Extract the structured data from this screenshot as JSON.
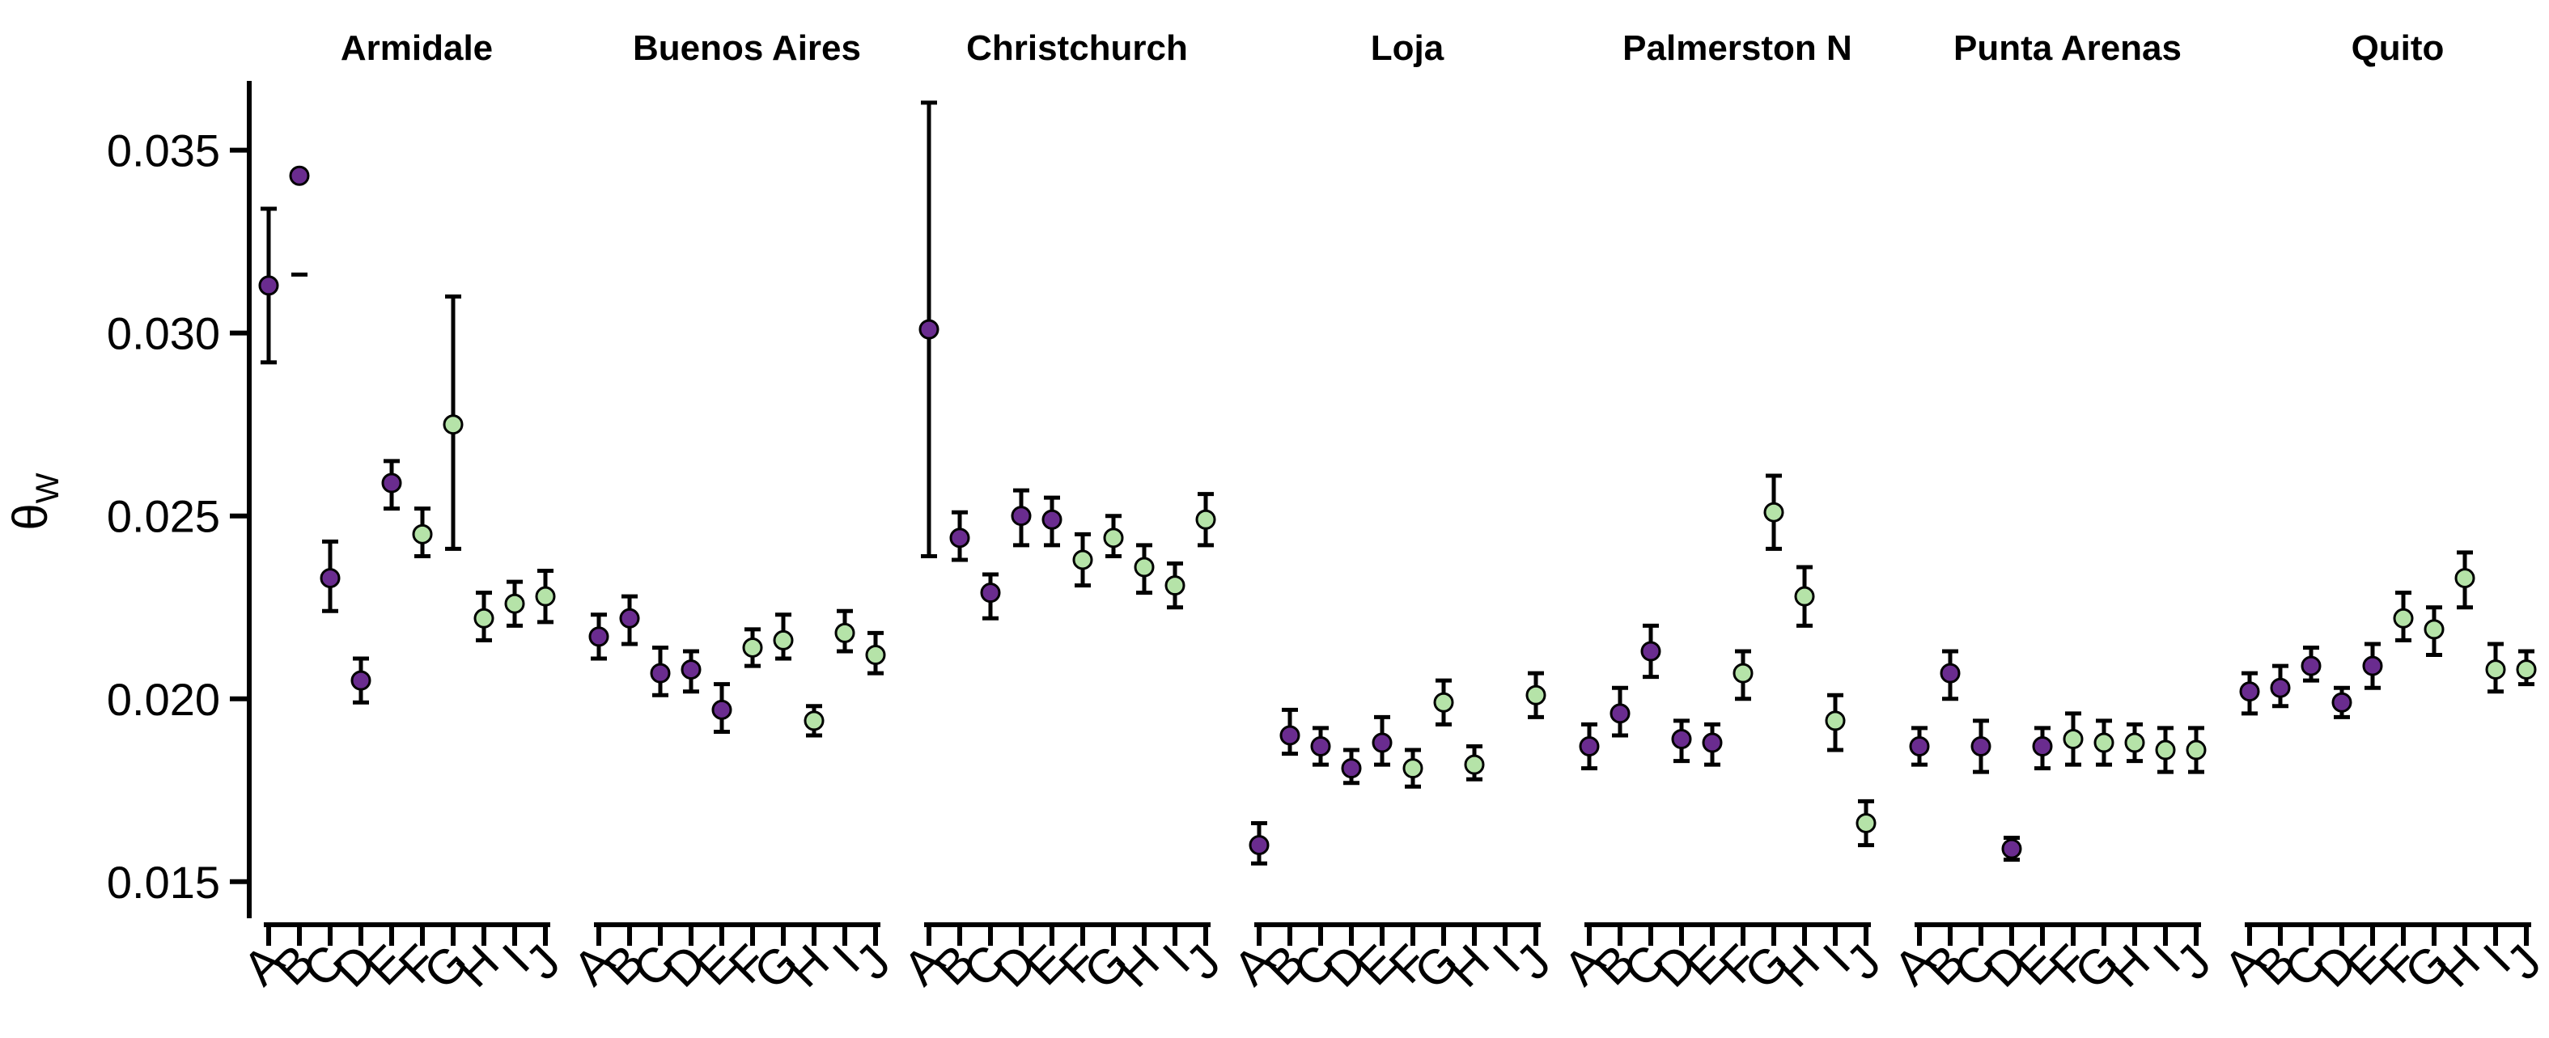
{
  "chart_data": {
    "type": "scatter",
    "subtype": "point-with-error-bars, faceted",
    "ylabel": "θW",
    "ylim": [
      0.014,
      0.038
    ],
    "yticks": [
      "0.015",
      "0.020",
      "0.025",
      "0.030",
      "0.035"
    ],
    "ytick_values": [
      0.015,
      0.02,
      0.025,
      0.03,
      0.035
    ],
    "categories": [
      "A",
      "B",
      "C",
      "D",
      "E",
      "F",
      "G",
      "H",
      "I",
      "J"
    ],
    "grid": false,
    "legend": "none",
    "colors": {
      "purple": "#6a2c8f",
      "green": "#b5e3a8",
      "outline": "#000000"
    },
    "panels": [
      {
        "title": "Armidale",
        "points": [
          {
            "x": "A",
            "y": 0.0313,
            "lo": 0.0292,
            "hi": 0.0334,
            "color": "purple"
          },
          {
            "x": "B",
            "y": 0.0343,
            "lo": 0.0316,
            "hi": 0.0316,
            "color": "purple"
          },
          {
            "x": "C",
            "y": 0.0233,
            "lo": 0.0224,
            "hi": 0.0243,
            "color": "purple"
          },
          {
            "x": "D",
            "y": 0.0205,
            "lo": 0.0199,
            "hi": 0.0211,
            "color": "purple"
          },
          {
            "x": "E",
            "y": 0.0259,
            "lo": 0.0252,
            "hi": 0.0265,
            "color": "purple"
          },
          {
            "x": "F",
            "y": 0.0245,
            "lo": 0.0239,
            "hi": 0.0252,
            "color": "green"
          },
          {
            "x": "G",
            "y": 0.0275,
            "lo": 0.0241,
            "hi": 0.031,
            "color": "green"
          },
          {
            "x": "H",
            "y": 0.0222,
            "lo": 0.0216,
            "hi": 0.0229,
            "color": "green"
          },
          {
            "x": "I",
            "y": 0.0226,
            "lo": 0.022,
            "hi": 0.0232,
            "color": "green"
          },
          {
            "x": "J",
            "y": 0.0228,
            "lo": 0.0221,
            "hi": 0.0235,
            "color": "green"
          }
        ]
      },
      {
        "title": "Buenos Aires",
        "points": [
          {
            "x": "A",
            "y": 0.0217,
            "lo": 0.0211,
            "hi": 0.0223,
            "color": "purple"
          },
          {
            "x": "B",
            "y": 0.0222,
            "lo": 0.0215,
            "hi": 0.0228,
            "color": "purple"
          },
          {
            "x": "C",
            "y": 0.0207,
            "lo": 0.0201,
            "hi": 0.0214,
            "color": "purple"
          },
          {
            "x": "D",
            "y": 0.0208,
            "lo": 0.0202,
            "hi": 0.0213,
            "color": "purple"
          },
          {
            "x": "E",
            "y": 0.0197,
            "lo": 0.0191,
            "hi": 0.0204,
            "color": "purple"
          },
          {
            "x": "F",
            "y": 0.0214,
            "lo": 0.0209,
            "hi": 0.0219,
            "color": "green"
          },
          {
            "x": "G",
            "y": 0.0216,
            "lo": 0.0211,
            "hi": 0.0223,
            "color": "green"
          },
          {
            "x": "H",
            "y": 0.0194,
            "lo": 0.019,
            "hi": 0.0198,
            "color": "green"
          },
          {
            "x": "I",
            "y": 0.0218,
            "lo": 0.0213,
            "hi": 0.0224,
            "color": "green"
          },
          {
            "x": "J",
            "y": 0.0212,
            "lo": 0.0207,
            "hi": 0.0218,
            "color": "green"
          }
        ]
      },
      {
        "title": "Christchurch",
        "points": [
          {
            "x": "A",
            "y": 0.0301,
            "lo": 0.0239,
            "hi": 0.0363,
            "color": "purple"
          },
          {
            "x": "B",
            "y": 0.0244,
            "lo": 0.0238,
            "hi": 0.0251,
            "color": "purple"
          },
          {
            "x": "C",
            "y": 0.0229,
            "lo": 0.0222,
            "hi": 0.0234,
            "color": "purple"
          },
          {
            "x": "D",
            "y": 0.025,
            "lo": 0.0242,
            "hi": 0.0257,
            "color": "purple"
          },
          {
            "x": "E",
            "y": 0.0249,
            "lo": 0.0242,
            "hi": 0.0255,
            "color": "purple"
          },
          {
            "x": "F",
            "y": 0.0238,
            "lo": 0.0231,
            "hi": 0.0245,
            "color": "green"
          },
          {
            "x": "G",
            "y": 0.0244,
            "lo": 0.0239,
            "hi": 0.025,
            "color": "green"
          },
          {
            "x": "H",
            "y": 0.0236,
            "lo": 0.0229,
            "hi": 0.0242,
            "color": "green"
          },
          {
            "x": "I",
            "y": 0.0231,
            "lo": 0.0225,
            "hi": 0.0237,
            "color": "green"
          },
          {
            "x": "J",
            "y": 0.0249,
            "lo": 0.0242,
            "hi": 0.0256,
            "color": "green"
          }
        ]
      },
      {
        "title": "Loja",
        "points": [
          {
            "x": "A",
            "y": 0.016,
            "lo": 0.0155,
            "hi": 0.0166,
            "color": "purple"
          },
          {
            "x": "B",
            "y": 0.019,
            "lo": 0.0185,
            "hi": 0.0197,
            "color": "purple"
          },
          {
            "x": "C",
            "y": 0.0187,
            "lo": 0.0182,
            "hi": 0.0192,
            "color": "purple"
          },
          {
            "x": "D",
            "y": 0.0181,
            "lo": 0.0177,
            "hi": 0.0186,
            "color": "purple"
          },
          {
            "x": "E",
            "y": 0.0188,
            "lo": 0.0182,
            "hi": 0.0195,
            "color": "purple"
          },
          {
            "x": "F",
            "y": 0.0181,
            "lo": 0.0176,
            "hi": 0.0186,
            "color": "green"
          },
          {
            "x": "G",
            "y": 0.0199,
            "lo": 0.0193,
            "hi": 0.0205,
            "color": "green"
          },
          {
            "x": "H",
            "y": 0.0182,
            "lo": 0.0178,
            "hi": 0.0187,
            "color": "green"
          },
          {
            "x": "I",
            "y": null,
            "lo": null,
            "hi": null,
            "color": "green"
          },
          {
            "x": "J",
            "y": 0.0201,
            "lo": 0.0195,
            "hi": 0.0207,
            "color": "green"
          }
        ]
      },
      {
        "title": "Palmerston N",
        "points": [
          {
            "x": "A",
            "y": 0.0187,
            "lo": 0.0181,
            "hi": 0.0193,
            "color": "purple"
          },
          {
            "x": "B",
            "y": 0.0196,
            "lo": 0.019,
            "hi": 0.0203,
            "color": "purple"
          },
          {
            "x": "C",
            "y": 0.0213,
            "lo": 0.0206,
            "hi": 0.022,
            "color": "purple"
          },
          {
            "x": "D",
            "y": 0.0189,
            "lo": 0.0183,
            "hi": 0.0194,
            "color": "purple"
          },
          {
            "x": "E",
            "y": 0.0188,
            "lo": 0.0182,
            "hi": 0.0193,
            "color": "purple"
          },
          {
            "x": "F",
            "y": 0.0207,
            "lo": 0.02,
            "hi": 0.0213,
            "color": "green"
          },
          {
            "x": "G",
            "y": 0.0251,
            "lo": 0.0241,
            "hi": 0.0261,
            "color": "green"
          },
          {
            "x": "H",
            "y": 0.0228,
            "lo": 0.022,
            "hi": 0.0236,
            "color": "green"
          },
          {
            "x": "I",
            "y": 0.0194,
            "lo": 0.0186,
            "hi": 0.0201,
            "color": "green"
          },
          {
            "x": "J",
            "y": 0.0166,
            "lo": 0.016,
            "hi": 0.0172,
            "color": "green"
          }
        ]
      },
      {
        "title": "Punta Arenas",
        "points": [
          {
            "x": "A",
            "y": 0.0187,
            "lo": 0.0182,
            "hi": 0.0192,
            "color": "purple"
          },
          {
            "x": "B",
            "y": 0.0207,
            "lo": 0.02,
            "hi": 0.0213,
            "color": "purple"
          },
          {
            "x": "C",
            "y": 0.0187,
            "lo": 0.018,
            "hi": 0.0194,
            "color": "purple"
          },
          {
            "x": "D",
            "y": 0.0159,
            "lo": 0.0156,
            "hi": 0.0162,
            "color": "purple"
          },
          {
            "x": "E",
            "y": 0.0187,
            "lo": 0.0181,
            "hi": 0.0192,
            "color": "purple"
          },
          {
            "x": "F",
            "y": 0.0189,
            "lo": 0.0182,
            "hi": 0.0196,
            "color": "green"
          },
          {
            "x": "G",
            "y": 0.0188,
            "lo": 0.0182,
            "hi": 0.0194,
            "color": "green"
          },
          {
            "x": "H",
            "y": 0.0188,
            "lo": 0.0183,
            "hi": 0.0193,
            "color": "green"
          },
          {
            "x": "I",
            "y": 0.0186,
            "lo": 0.018,
            "hi": 0.0192,
            "color": "green"
          },
          {
            "x": "J",
            "y": 0.0186,
            "lo": 0.018,
            "hi": 0.0192,
            "color": "green"
          }
        ]
      },
      {
        "title": "Quito",
        "points": [
          {
            "x": "A",
            "y": 0.0202,
            "lo": 0.0196,
            "hi": 0.0207,
            "color": "purple"
          },
          {
            "x": "B",
            "y": 0.0203,
            "lo": 0.0198,
            "hi": 0.0209,
            "color": "purple"
          },
          {
            "x": "C",
            "y": 0.0209,
            "lo": 0.0205,
            "hi": 0.0214,
            "color": "purple"
          },
          {
            "x": "D",
            "y": 0.0199,
            "lo": 0.0195,
            "hi": 0.0203,
            "color": "purple"
          },
          {
            "x": "E",
            "y": 0.0209,
            "lo": 0.0203,
            "hi": 0.0215,
            "color": "purple"
          },
          {
            "x": "F",
            "y": 0.0222,
            "lo": 0.0216,
            "hi": 0.0229,
            "color": "green"
          },
          {
            "x": "G",
            "y": 0.0219,
            "lo": 0.0212,
            "hi": 0.0225,
            "color": "green"
          },
          {
            "x": "H",
            "y": 0.0233,
            "lo": 0.0225,
            "hi": 0.024,
            "color": "green"
          },
          {
            "x": "I",
            "y": 0.0208,
            "lo": 0.0202,
            "hi": 0.0215,
            "color": "green"
          },
          {
            "x": "J",
            "y": 0.0208,
            "lo": 0.0204,
            "hi": 0.0213,
            "color": "green"
          }
        ]
      }
    ]
  }
}
